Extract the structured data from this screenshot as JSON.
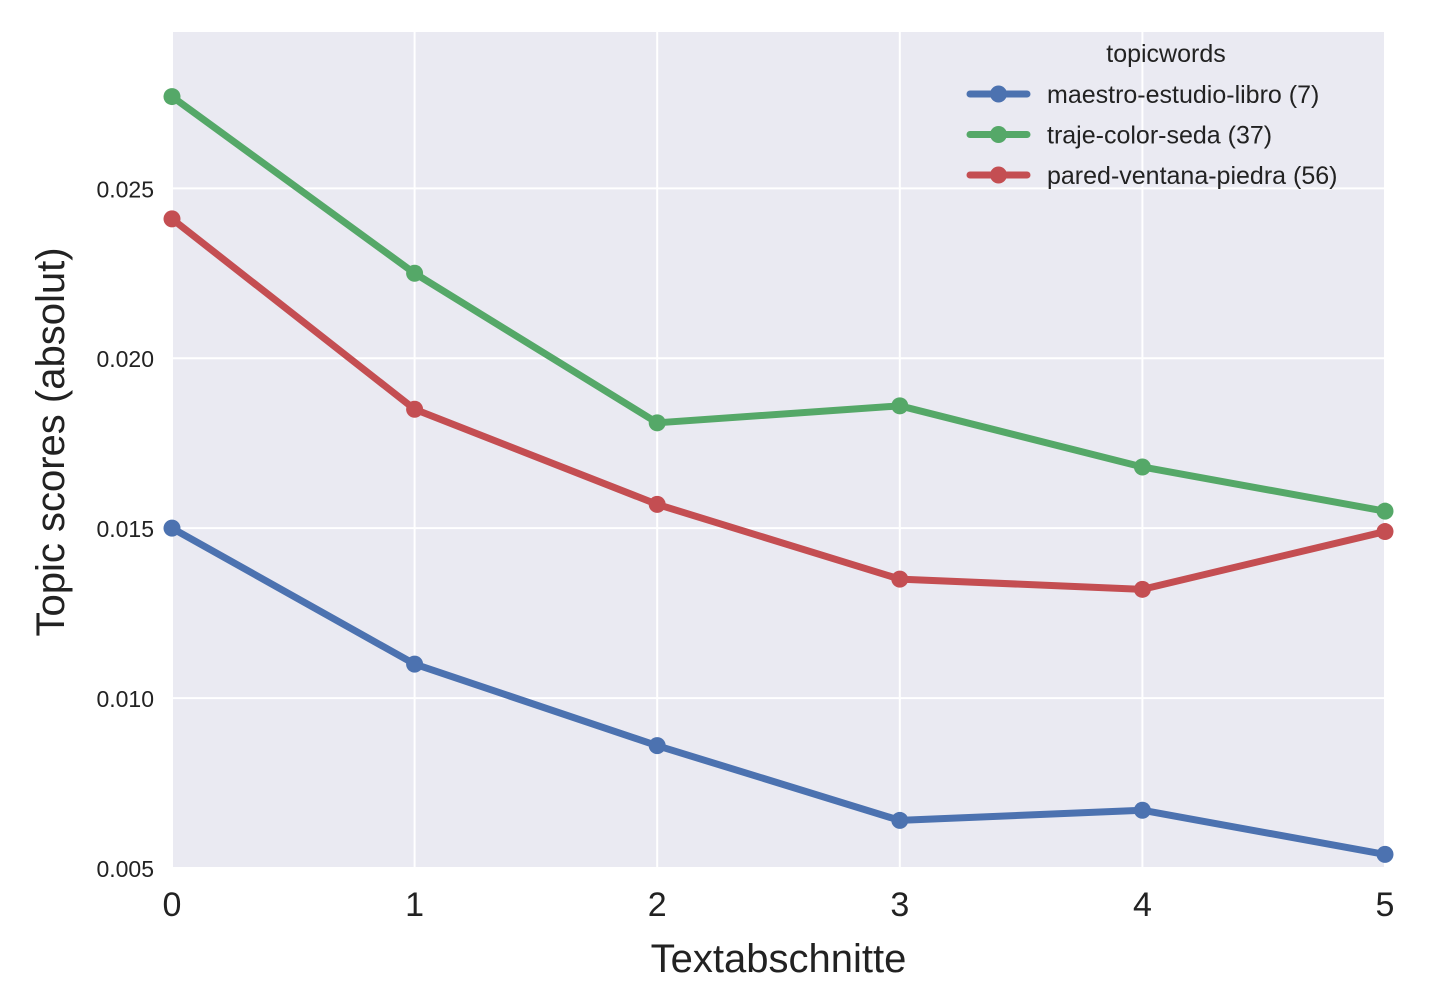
{
  "chart_data": {
    "type": "line",
    "title": "",
    "xlabel": "Textabschnitte",
    "ylabel": "Topic scores (absolut)",
    "x": [
      0,
      1,
      2,
      3,
      4,
      5
    ],
    "x_tick_labels": [
      "0",
      "1",
      "2",
      "3",
      "4",
      "5"
    ],
    "y_ticks": [
      0.005,
      0.01,
      0.015,
      0.02,
      0.025
    ],
    "y_tick_labels": [
      "0.005",
      "0.010",
      "0.015",
      "0.020",
      "0.025"
    ],
    "xlim": [
      0,
      5
    ],
    "ylim": [
      0.005,
      0.0296
    ],
    "grid": true,
    "legend": {
      "title": "topicwords",
      "placement": "top-right"
    },
    "series": [
      {
        "name": "maestro-estudio-libro (7)",
        "color": "#4c72b0",
        "values": [
          0.015,
          0.011,
          0.0086,
          0.0064,
          0.0067,
          0.0054
        ]
      },
      {
        "name": "traje-color-seda (37)",
        "color": "#55a868",
        "values": [
          0.0277,
          0.0225,
          0.0181,
          0.0186,
          0.0168,
          0.0155
        ]
      },
      {
        "name": "pared-ventana-piedra (56)",
        "color": "#c44e52",
        "values": [
          0.0241,
          0.0185,
          0.0157,
          0.0135,
          0.0132,
          0.0149
        ]
      }
    ]
  }
}
